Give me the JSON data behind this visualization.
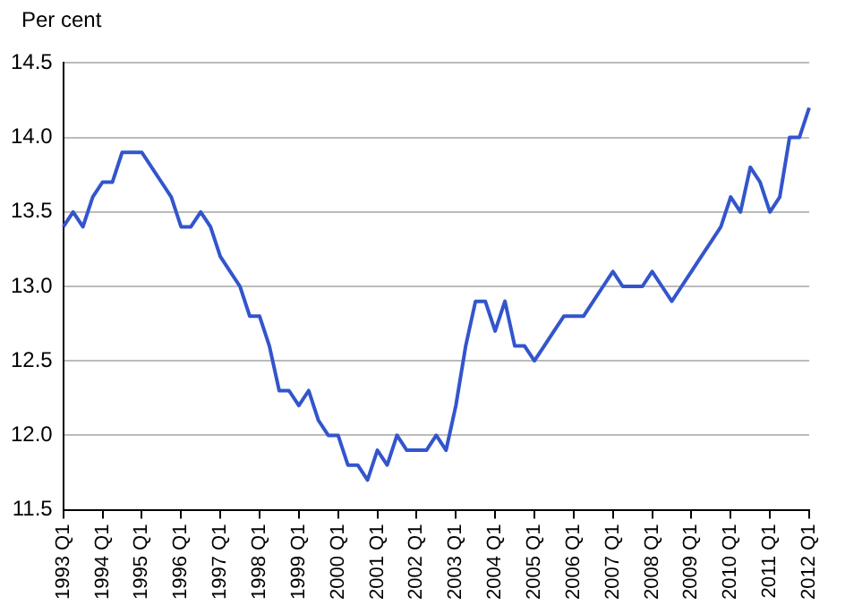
{
  "chart_data": {
    "type": "line",
    "ylabel": "Per cent",
    "categories": [
      "1993 Q1",
      null,
      null,
      null,
      "1994 Q1",
      null,
      null,
      null,
      "1995 Q1",
      null,
      null,
      null,
      "1996 Q1",
      null,
      null,
      null,
      "1997 Q1",
      null,
      null,
      null,
      "1998 Q1",
      null,
      null,
      null,
      "1999 Q1",
      null,
      null,
      null,
      "2000 Q1",
      null,
      null,
      null,
      "2001 Q1",
      null,
      null,
      null,
      "2002 Q1",
      null,
      null,
      null,
      "2003 Q1",
      null,
      null,
      null,
      "2004 Q1",
      null,
      null,
      null,
      "2005 Q1",
      null,
      null,
      null,
      "2006 Q1",
      null,
      null,
      null,
      "2007 Q1",
      null,
      null,
      null,
      "2008 Q1",
      null,
      null,
      null,
      "2009 Q1",
      null,
      null,
      null,
      "2010 Q1",
      null,
      null,
      null,
      "2011 Q1",
      null,
      null,
      null,
      "2012 Q1"
    ],
    "series": [
      {
        "color": "#3355cc",
        "values": [
          13.4,
          13.5,
          13.4,
          13.6,
          13.7,
          13.7,
          13.9,
          13.9,
          13.9,
          13.8,
          13.7,
          13.6,
          13.4,
          13.4,
          13.5,
          13.4,
          13.2,
          13.1,
          13.0,
          12.8,
          12.8,
          12.6,
          12.3,
          12.3,
          12.2,
          12.3,
          12.1,
          12.0,
          12.0,
          11.8,
          11.8,
          11.7,
          11.9,
          11.8,
          12.0,
          11.9,
          11.9,
          11.9,
          12.0,
          11.9,
          12.2,
          12.6,
          12.9,
          12.9,
          12.7,
          12.9,
          12.6,
          12.6,
          12.5,
          12.6,
          12.7,
          12.8,
          12.8,
          12.8,
          12.9,
          13.0,
          13.1,
          13.0,
          13.0,
          13.0,
          13.1,
          13.0,
          12.9,
          13.0,
          13.1,
          13.2,
          13.3,
          13.4,
          13.6,
          13.5,
          13.8,
          13.7,
          13.5,
          13.6,
          14.0,
          14.0,
          14.2
        ]
      }
    ],
    "ylim": [
      11.5,
      14.5
    ],
    "yticks": [
      11.5,
      {
        "value": 12,
        "label": "12.0"
      },
      12.5,
      {
        "value": 13,
        "label": "13.0"
      },
      13.5,
      {
        "value": 14,
        "label": "14.0"
      },
      14.5
    ],
    "grid": "y",
    "legend": false,
    "marker": "none",
    "line_style": "solid"
  }
}
